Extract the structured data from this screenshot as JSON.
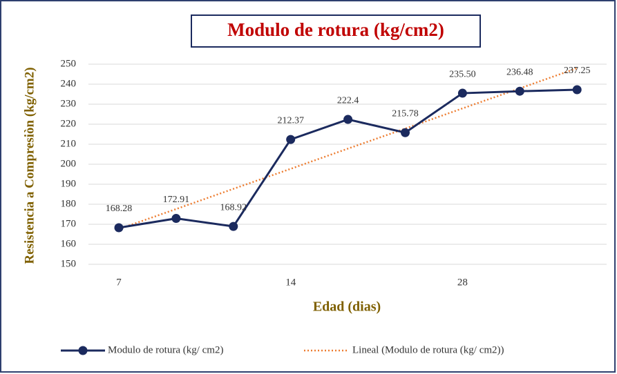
{
  "chart_data": {
    "type": "line",
    "title": "Modulo de rotura (kg/cm2)",
    "x_label": "Edad (dias)",
    "y_label": "Resistencia a Compresiòn (kg/cm2)",
    "categories": [
      "7",
      null,
      null,
      "14",
      null,
      null,
      "28",
      null,
      null
    ],
    "series": [
      {
        "name": "Modulo de rotura (kg/ cm2)",
        "color": "#1b2a5e",
        "values": [
          168.28,
          172.91,
          168.92,
          212.37,
          222.4,
          215.78,
          235.5,
          236.48,
          237.25
        ],
        "value_labels": [
          "168.28",
          "172.91",
          "168.92",
          "212.37",
          "222.4",
          "215.78",
          "235.50",
          "236.48",
          "237.25"
        ]
      },
      {
        "name": "Lineal (Modulo de rotura (kg/ cm2))",
        "color": "#ed7d31",
        "style": "dotted",
        "values": [
          167.6,
          177.6,
          187.7,
          197.7,
          207.8,
          217.8,
          227.9,
          237.9,
          248.0
        ]
      }
    ],
    "ylim": [
      150,
      250
    ],
    "yticks": [
      150,
      160,
      170,
      180,
      190,
      200,
      210,
      220,
      230,
      240,
      250
    ],
    "grid": true,
    "legend": "bottom"
  }
}
